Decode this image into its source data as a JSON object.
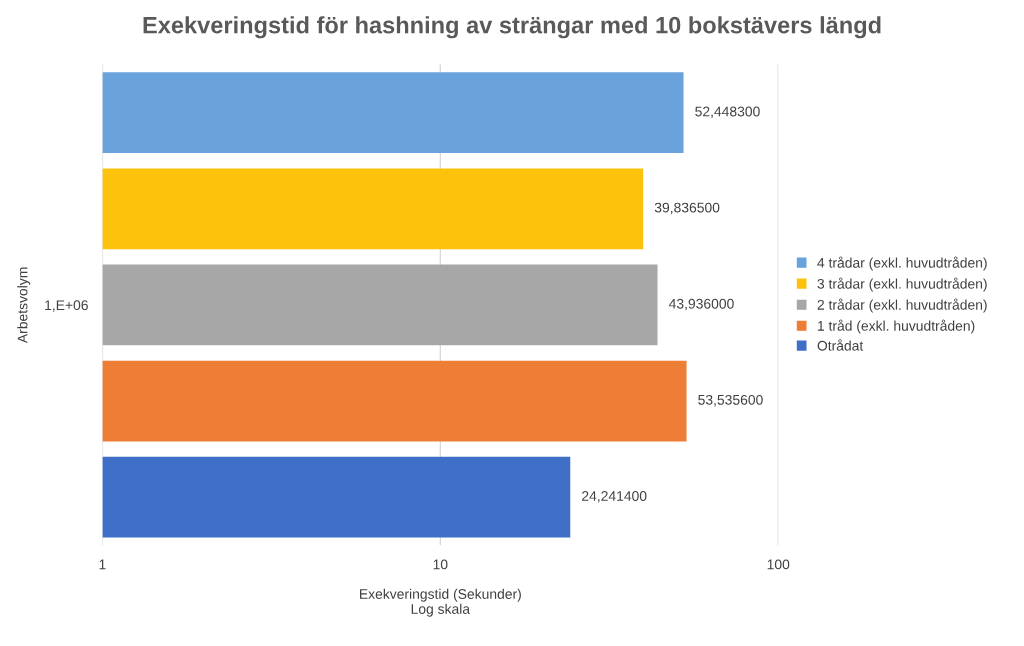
{
  "chart_data": {
    "type": "bar",
    "orientation": "horizontal",
    "title": "Exekveringstid för hashning av strängar med 10 bokstävers längd",
    "xlabel": "Exekveringstid (Sekunder)\nLog skala",
    "ylabel": "Arbetsvolym",
    "categories": [
      "1,E+06"
    ],
    "series": [
      {
        "name": "4 trådar (exkl. huvudtråden)",
        "color": "#6aa3dc",
        "values": [
          52.4483
        ],
        "value_labels": [
          "52,448300"
        ]
      },
      {
        "name": "3 trådar (exkl. huvudtråden)",
        "color": "#fdc20c",
        "values": [
          39.8365
        ],
        "value_labels": [
          "39,836500"
        ]
      },
      {
        "name": "2 trådar (exkl. huvudtråden)",
        "color": "#a7a7a7",
        "values": [
          43.936
        ],
        "value_labels": [
          "43,936000"
        ]
      },
      {
        "name": "1 tråd (exkl. huvudtråden)",
        "color": "#ee7d36",
        "values": [
          53.5356
        ],
        "value_labels": [
          "53,535600"
        ]
      },
      {
        "name": "Otrådat",
        "color": "#3f6fc7",
        "values": [
          24.2414
        ],
        "value_labels": [
          "24,241400"
        ]
      }
    ],
    "log": "x",
    "xlim": [
      1,
      100
    ],
    "xticks": [
      1,
      10,
      100
    ],
    "grid": "x",
    "legend": "right"
  }
}
